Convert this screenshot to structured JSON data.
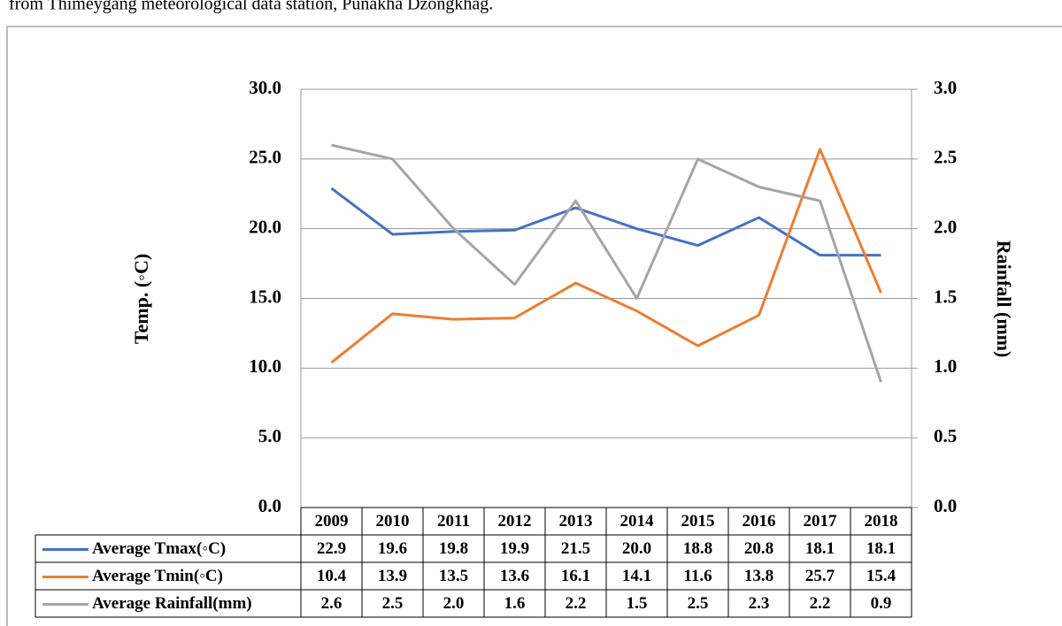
{
  "caption": "from Thimeygang meteorological data station, Punakha Dzongkhag.",
  "chart_data": {
    "type": "line",
    "y_label": "Temp. (◦C)",
    "y2_label": "Rainfall (mm)",
    "categories": [
      "2009",
      "2010",
      "2011",
      "2012",
      "2013",
      "2014",
      "2015",
      "2016",
      "2017",
      "2018"
    ],
    "series": [
      {
        "name": "Average Tmax(◦C)",
        "color": "#4472c4",
        "axis": "y",
        "values": [
          22.9,
          19.6,
          19.8,
          19.9,
          21.5,
          20.0,
          18.8,
          20.8,
          18.1,
          18.1
        ],
        "value_labels": [
          "22.9",
          "19.6",
          "19.8",
          "19.9",
          "21.5",
          "20.0",
          "18.8",
          "20.8",
          "18.1",
          "18.1"
        ]
      },
      {
        "name": "Average Tmin(◦C)",
        "color": "#ed7d31",
        "axis": "y",
        "values": [
          10.4,
          13.9,
          13.5,
          13.6,
          16.1,
          14.1,
          11.6,
          13.8,
          25.7,
          15.4
        ],
        "value_labels": [
          "10.4",
          "13.9",
          "13.5",
          "13.6",
          "16.1",
          "14.1",
          "11.6",
          "13.8",
          "25.7",
          "15.4"
        ]
      },
      {
        "name": "Average Rainfall(mm)",
        "color": "#a5a5a5",
        "axis": "y2",
        "values": [
          2.6,
          2.5,
          2.0,
          1.6,
          2.2,
          1.5,
          2.5,
          2.3,
          2.2,
          0.9
        ],
        "value_labels": [
          "2.6",
          "2.5",
          "2.0",
          "1.6",
          "2.2",
          "1.5",
          "2.5",
          "2.3",
          "2.2",
          "0.9"
        ]
      }
    ],
    "ylim": [
      0,
      30
    ],
    "yticks": [
      {
        "value": 0,
        "label": "0.0"
      },
      {
        "value": 5,
        "label": "5.0"
      },
      {
        "value": 10,
        "label": "10.0"
      },
      {
        "value": 15,
        "label": "15.0"
      },
      {
        "value": 20,
        "label": "20.0"
      },
      {
        "value": 25,
        "label": "25.0"
      },
      {
        "value": 30,
        "label": "30.0"
      }
    ],
    "y2lim": [
      0,
      3
    ],
    "y2ticks": [
      {
        "value": 0,
        "label": "0.0"
      },
      {
        "value": 0.5,
        "label": "0.5"
      },
      {
        "value": 1,
        "label": "1.0"
      },
      {
        "value": 1.5,
        "label": "1.5"
      },
      {
        "value": 2,
        "label": "2.0"
      },
      {
        "value": 2.5,
        "label": "2.5"
      },
      {
        "value": 3,
        "label": "3.0"
      }
    ],
    "grid": true
  }
}
